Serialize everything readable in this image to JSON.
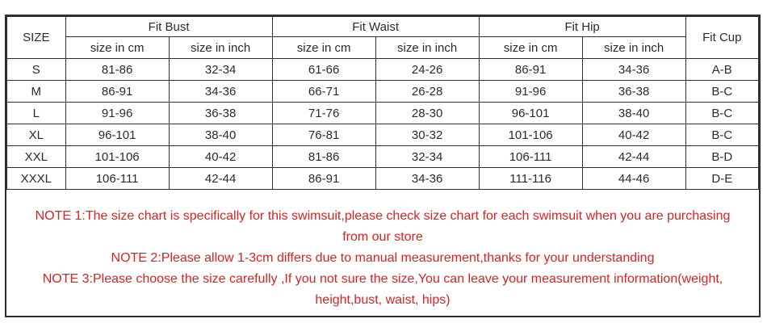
{
  "colors": {
    "note_red": "#d92222",
    "border_dark": "#2f2f2f",
    "table_text": "#2b2b2b",
    "background": "#ffffff"
  },
  "table": {
    "size_header": "SIZE",
    "cup_header": "Fit Cup",
    "groups": [
      {
        "label": "Fit Bust",
        "sub_cm": "size in cm",
        "sub_inch": "size in inch"
      },
      {
        "label": "Fit Waist",
        "sub_cm": "size in cm",
        "sub_inch": "size in inch"
      },
      {
        "label": "Fit Hip",
        "sub_cm": "size in cm",
        "sub_inch": "size in inch"
      }
    ],
    "rows": [
      {
        "size": "S",
        "bust_cm": "81-86",
        "bust_in": "32-34",
        "waist_cm": "61-66",
        "waist_in": "24-26",
        "hip_cm": "86-91",
        "hip_in": "34-36",
        "cup": "A-B"
      },
      {
        "size": "M",
        "bust_cm": "86-91",
        "bust_in": "34-36",
        "waist_cm": "66-71",
        "waist_in": "26-28",
        "hip_cm": "91-96",
        "hip_in": "36-38",
        "cup": "B-C"
      },
      {
        "size": "L",
        "bust_cm": "91-96",
        "bust_in": "36-38",
        "waist_cm": "71-76",
        "waist_in": "28-30",
        "hip_cm": "96-101",
        "hip_in": "38-40",
        "cup": "B-C"
      },
      {
        "size": "XL",
        "bust_cm": "96-101",
        "bust_in": "38-40",
        "waist_cm": "76-81",
        "waist_in": "30-32",
        "hip_cm": "101-106",
        "hip_in": "40-42",
        "cup": "B-C"
      },
      {
        "size": "XXL",
        "bust_cm": "101-106",
        "bust_in": "40-42",
        "waist_cm": "81-86",
        "waist_in": "32-34",
        "hip_cm": "106-111",
        "hip_in": "42-44",
        "cup": "B-D"
      },
      {
        "size": "XXXL",
        "bust_cm": "106-111",
        "bust_in": "42-44",
        "waist_cm": "86-91",
        "waist_in": "34-36",
        "hip_cm": "111-116",
        "hip_in": "44-46",
        "cup": "D-E"
      }
    ]
  },
  "notes": {
    "note1": "NOTE 1:The size chart is specifically for this swimsuit,please check size chart for each swimsuit when you are purchasing from our store",
    "note2": "NOTE 2:Please allow 1-3cm differs due to manual measurement,thanks for your understanding",
    "note3": "NOTE 3:Please choose the size carefully ,If you not sure the size,You can leave your measurement information(weight, height,bust, waist, hips)"
  }
}
